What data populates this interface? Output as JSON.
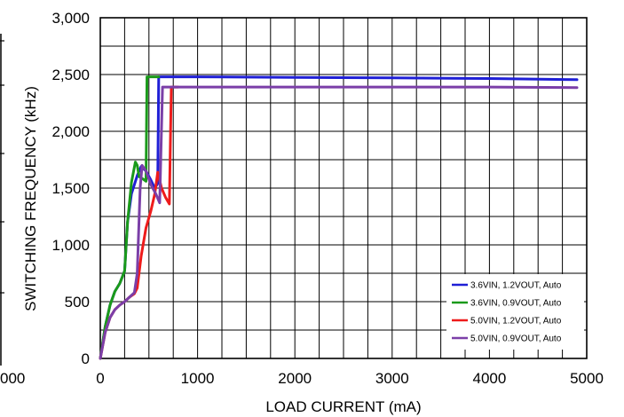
{
  "chart_data": {
    "type": "line",
    "title": "",
    "xlabel": "LOAD CURRENT (mA)",
    "ylabel": "SWITCHING FREQUENCY (kHz)",
    "xlim": [
      0,
      5000
    ],
    "ylim": [
      0,
      3000
    ],
    "x_ticks": [
      0,
      1000,
      2000,
      3000,
      4000,
      5000
    ],
    "x_tick_labels": [
      "0",
      "1000",
      "2000",
      "3000",
      "4000",
      "5000"
    ],
    "y_ticks": [
      0,
      500,
      1000,
      1500,
      2000,
      2500,
      3000
    ],
    "y_tick_labels": [
      "0",
      "500",
      "1,000",
      "1,500",
      "2,000",
      "2,500",
      "3,000"
    ],
    "left_edge_label": "000",
    "grid": true,
    "minor_x_step": 250,
    "minor_y_step": 250,
    "legend_position": "bottom-right",
    "series": [
      {
        "name": "3.6VIN, 1.2VOUT, Auto",
        "color": "#1f1fd6",
        "x": [
          0,
          50,
          100,
          150,
          200,
          250,
          280,
          320,
          380,
          420,
          470,
          520,
          560,
          590,
          600,
          620,
          1000,
          2000,
          3000,
          4000,
          4900
        ],
        "y": [
          0,
          280,
          470,
          590,
          660,
          770,
          1200,
          1450,
          1610,
          1690,
          1650,
          1570,
          1500,
          1540,
          2480,
          2480,
          2480,
          2475,
          2470,
          2465,
          2455
        ]
      },
      {
        "name": "3.6VIN, 0.9VOUT, Auto",
        "color": "#1a9a1a",
        "x": [
          0,
          50,
          100,
          150,
          200,
          250,
          280,
          320,
          360,
          380,
          400,
          440,
          470,
          480,
          490,
          500,
          600
        ],
        "y": [
          0,
          280,
          470,
          590,
          660,
          770,
          1200,
          1550,
          1730,
          1700,
          1600,
          1580,
          1560,
          2480,
          2480,
          2480,
          2480
        ]
      },
      {
        "name": "5.0VIN, 1.2VOUT, Auto",
        "color": "#ee1b1b",
        "x": [
          0,
          50,
          100,
          150,
          200,
          250,
          300,
          350,
          380,
          420,
          470,
          520,
          560,
          590,
          630,
          670,
          710,
          730,
          760,
          800
        ],
        "y": [
          0,
          230,
          360,
          430,
          470,
          500,
          540,
          570,
          620,
          900,
          1150,
          1300,
          1450,
          1640,
          1500,
          1420,
          1360,
          2390,
          2390,
          2390
        ]
      },
      {
        "name": "5.0VIN, 0.9VOUT, Auto",
        "color": "#7b3fa8",
        "x": [
          0,
          50,
          100,
          150,
          200,
          250,
          300,
          350,
          380,
          410,
          430,
          470,
          520,
          570,
          610,
          640,
          660,
          700,
          1000,
          2000,
          3000,
          4000,
          4900
        ],
        "y": [
          0,
          230,
          360,
          430,
          470,
          500,
          540,
          580,
          750,
          1500,
          1700,
          1650,
          1530,
          1450,
          1370,
          2390,
          2390,
          2390,
          2390,
          2390,
          2390,
          2390,
          2385
        ]
      }
    ]
  }
}
